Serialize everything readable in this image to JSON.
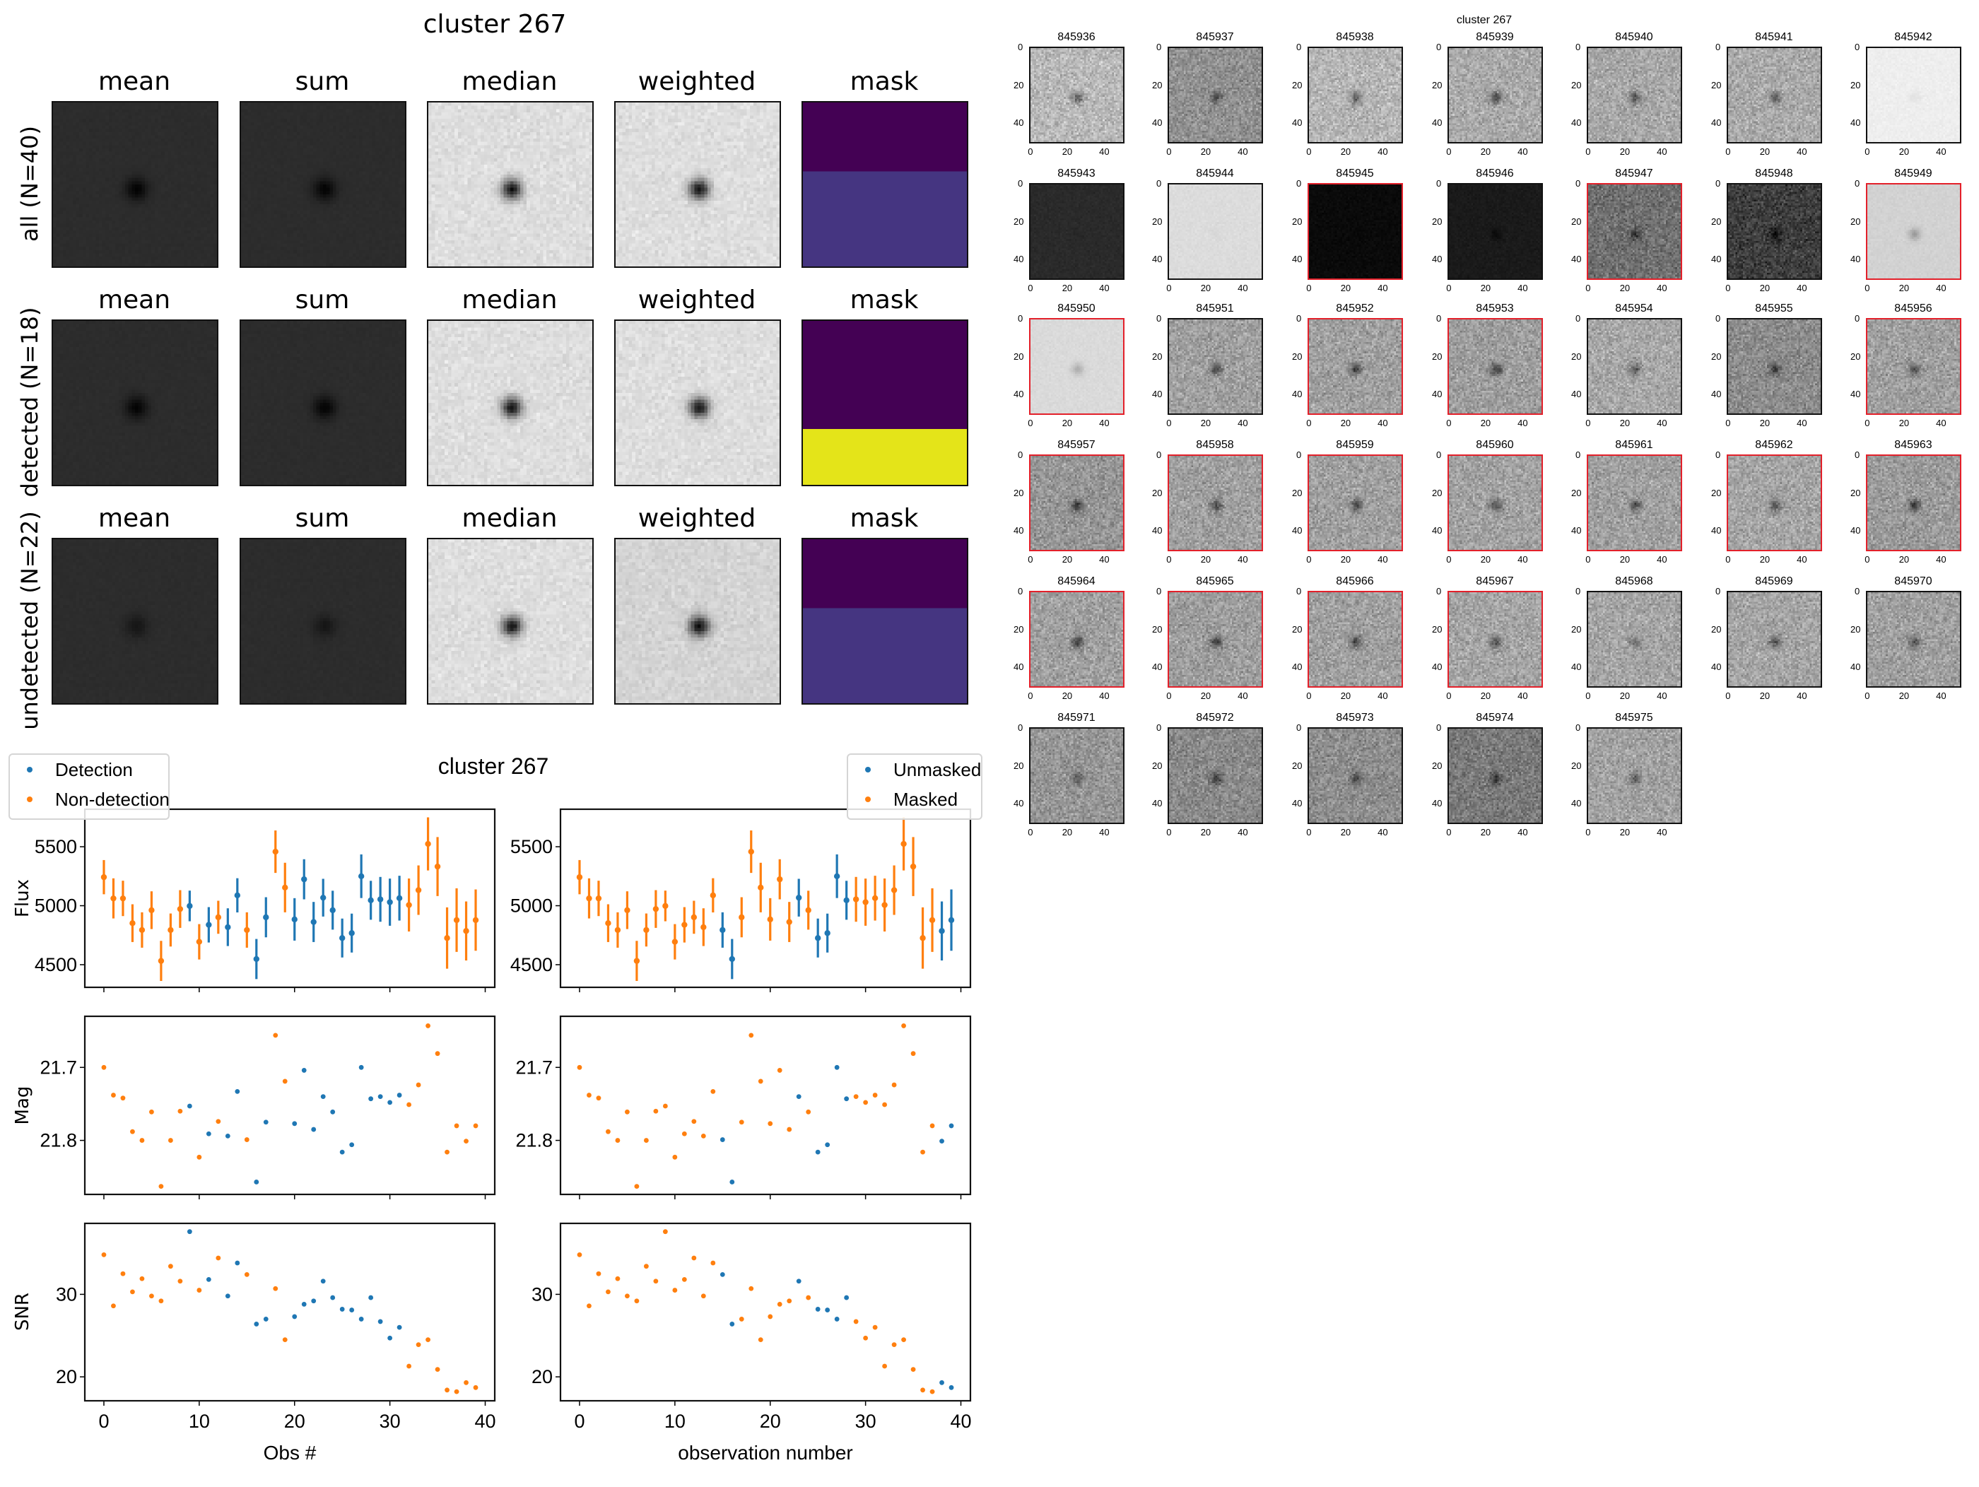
{
  "stack_figure": {
    "title": "cluster 267",
    "column_titles": [
      "mean",
      "sum",
      "median",
      "weighted",
      "mask"
    ],
    "rows": [
      {
        "label": "all (N=40)",
        "mask_colors": [
          "#440154",
          "#453581"
        ],
        "mask_split": 0.42
      },
      {
        "label": "detected (N=18)",
        "mask_colors": [
          "#440154",
          "#e4e419"
        ],
        "mask_split": 0.66
      },
      {
        "label": "undetected (N=22)",
        "mask_colors": [
          "#440154",
          "#453581"
        ],
        "mask_split": 0.42
      }
    ]
  },
  "lightcurve_figure": {
    "title": "cluster 267",
    "left_legend": [
      {
        "label": "Detection",
        "color": "#1f77b4"
      },
      {
        "label": "Non-detection",
        "color": "#ff7f0e"
      }
    ],
    "right_legend": [
      {
        "label": "Unmasked",
        "color": "#1f77b4"
      },
      {
        "label": "Masked",
        "color": "#ff7f0e"
      }
    ],
    "left_xlabel": "Obs #",
    "right_xlabel": "observation number",
    "ylabels": {
      "flux": "Flux",
      "mag": "Mag",
      "snr": "SNR"
    }
  },
  "observations": {
    "x": [
      0,
      1,
      2,
      3,
      4,
      5,
      6,
      7,
      8,
      9,
      10,
      11,
      12,
      13,
      14,
      15,
      16,
      17,
      18,
      19,
      20,
      21,
      22,
      23,
      24,
      25,
      26,
      27,
      28,
      29,
      30,
      31,
      32,
      33,
      34,
      35,
      36,
      37,
      38,
      39
    ],
    "flux": [
      5242,
      5062,
      5062,
      4852,
      4794,
      4962,
      4532,
      4794,
      4972,
      4998,
      4694,
      4838,
      4902,
      4818,
      5088,
      4794,
      4548,
      4902,
      5458,
      5154,
      4884,
      5224,
      4862,
      5068,
      4962,
      4726,
      4768,
      5250,
      5046,
      5054,
      5030,
      5064,
      5006,
      5132,
      5524,
      5332,
      4726,
      4878,
      4786,
      4878
    ],
    "flux_err": [
      145,
      170,
      150,
      160,
      150,
      160,
      170,
      140,
      160,
      130,
      150,
      150,
      140,
      160,
      145,
      150,
      170,
      170,
      180,
      210,
      180,
      170,
      170,
      160,
      165,
      165,
      165,
      185,
      165,
      190,
      200,
      190,
      225,
      210,
      225,
      250,
      260,
      270,
      250,
      260
    ],
    "mag": [
      21.7,
      21.738,
      21.742,
      21.788,
      21.8,
      21.761,
      21.863,
      21.8,
      21.76,
      21.753,
      21.823,
      21.791,
      21.774,
      21.794,
      21.733,
      21.799,
      21.857,
      21.775,
      21.656,
      21.719,
      21.777,
      21.704,
      21.785,
      21.74,
      21.761,
      21.816,
      21.806,
      21.7,
      21.743,
      21.74,
      21.748,
      21.738,
      21.751,
      21.724,
      21.643,
      21.681,
      21.816,
      21.78,
      21.801,
      21.78
    ],
    "snr": [
      34.8,
      28.6,
      32.5,
      30.3,
      31.9,
      29.8,
      29.2,
      33.4,
      31.6,
      37.6,
      30.5,
      31.8,
      34.4,
      29.8,
      33.8,
      32.4,
      26.4,
      27.0,
      30.7,
      24.5,
      27.3,
      28.8,
      29.2,
      31.6,
      29.6,
      28.2,
      28.1,
      27.0,
      29.6,
      26.7,
      24.7,
      26.0,
      21.3,
      23.9,
      24.5,
      20.9,
      18.4,
      18.2,
      19.3,
      18.7
    ],
    "detected": [
      0,
      0,
      0,
      0,
      0,
      0,
      0,
      0,
      0,
      1,
      0,
      1,
      0,
      1,
      1,
      0,
      1,
      1,
      0,
      0,
      1,
      1,
      1,
      1,
      1,
      1,
      1,
      1,
      1,
      1,
      1,
      1,
      0,
      0,
      0,
      0,
      0,
      0,
      0,
      0
    ],
    "masked": [
      1,
      1,
      1,
      1,
      1,
      1,
      1,
      1,
      1,
      1,
      1,
      1,
      1,
      1,
      1,
      0,
      0,
      1,
      1,
      1,
      1,
      1,
      1,
      0,
      1,
      0,
      0,
      0,
      0,
      1,
      1,
      1,
      1,
      1,
      1,
      1,
      1,
      1,
      0,
      0
    ]
  },
  "chart_data": [
    {
      "type": "scatter",
      "panel": "left-flux",
      "metric": "flux",
      "error": "flux_err",
      "group_by": "detected",
      "ylabel": "Flux",
      "xlabel": "",
      "xlim": [
        -2,
        41
      ],
      "ylim": [
        4308,
        5818
      ],
      "yticks": [
        4500,
        5000,
        5500
      ],
      "ytick_labels": [
        "4500",
        "5000",
        "5500"
      ],
      "series": [
        "Detection",
        "Non-detection"
      ]
    },
    {
      "type": "scatter",
      "panel": "left-mag",
      "metric": "mag",
      "group_by": "detected",
      "ylabel": "Mag",
      "xlabel": "",
      "xlim": [
        -2,
        41
      ],
      "ylim": [
        21.874,
        21.63
      ],
      "inverted_y": true,
      "yticks": [
        21.7,
        21.8
      ],
      "ytick_labels": [
        "21.7",
        "21.8"
      ],
      "series": [
        "Detection",
        "Non-detection"
      ]
    },
    {
      "type": "scatter",
      "panel": "left-snr",
      "metric": "snr",
      "group_by": "detected",
      "ylabel": "SNR",
      "xlabel": "Obs #",
      "xlim": [
        -2,
        41
      ],
      "ylim": [
        17.1,
        38.6
      ],
      "yticks": [
        20,
        30
      ],
      "ytick_labels": [
        "20",
        "30"
      ],
      "xticks": [
        0,
        10,
        20,
        30,
        40
      ],
      "xtick_labels": [
        "0",
        "10",
        "20",
        "30",
        "40"
      ],
      "series": [
        "Detection",
        "Non-detection"
      ]
    },
    {
      "type": "scatter",
      "panel": "right-flux",
      "metric": "flux",
      "error": "flux_err",
      "group_by": "unmasked",
      "xlim": [
        -2,
        41
      ],
      "ylim": [
        4308,
        5818
      ],
      "yticks": [
        4500,
        5000,
        5500
      ],
      "ytick_labels": [
        "4500",
        "5000",
        "5500"
      ],
      "series": [
        "Unmasked",
        "Masked"
      ]
    },
    {
      "type": "scatter",
      "panel": "right-mag",
      "metric": "mag",
      "group_by": "unmasked",
      "xlim": [
        -2,
        41
      ],
      "ylim": [
        21.874,
        21.63
      ],
      "inverted_y": true,
      "yticks": [
        21.7,
        21.8
      ],
      "ytick_labels": [
        "21.7",
        "21.8"
      ],
      "series": [
        "Unmasked",
        "Masked"
      ]
    },
    {
      "type": "scatter",
      "panel": "right-snr",
      "metric": "snr",
      "group_by": "unmasked",
      "xlabel": "observation number",
      "xlim": [
        -2,
        41
      ],
      "ylim": [
        17.1,
        38.6
      ],
      "yticks": [
        20,
        30
      ],
      "ytick_labels": [
        "20",
        "30"
      ],
      "xticks": [
        0,
        10,
        20,
        30,
        40
      ],
      "xtick_labels": [
        "0",
        "10",
        "20",
        "30",
        "40"
      ],
      "series": [
        "Unmasked",
        "Masked"
      ]
    }
  ],
  "thumbnails": {
    "title": "cluster 267",
    "tick_labels": [
      "0",
      "20",
      "40"
    ],
    "highlight_color": "#e3202a",
    "items": [
      {
        "id": "845936",
        "tone": 185,
        "spot": 90,
        "highlight": false
      },
      {
        "id": "845937",
        "tone": 145,
        "spot": 70,
        "highlight": false
      },
      {
        "id": "845938",
        "tone": 182,
        "spot": 90,
        "highlight": false
      },
      {
        "id": "845939",
        "tone": 170,
        "spot": 100,
        "highlight": false
      },
      {
        "id": "845940",
        "tone": 168,
        "spot": 80,
        "highlight": false
      },
      {
        "id": "845941",
        "tone": 170,
        "spot": 80,
        "highlight": false
      },
      {
        "id": "845942",
        "tone": 238,
        "spot": 12,
        "highlight": false
      },
      {
        "id": "845943",
        "tone": 42,
        "spot": 3,
        "highlight": false
      },
      {
        "id": "845944",
        "tone": 220,
        "spot": 6,
        "highlight": false
      },
      {
        "id": "845945",
        "tone": 10,
        "spot": 3,
        "highlight": true
      },
      {
        "id": "845946",
        "tone": 26,
        "spot": 14,
        "highlight": false
      },
      {
        "id": "845947",
        "tone": 112,
        "spot": 55,
        "highlight": true
      },
      {
        "id": "845948",
        "tone": 62,
        "spot": 50,
        "highlight": false
      },
      {
        "id": "845949",
        "tone": 210,
        "spot": 55,
        "highlight": true
      },
      {
        "id": "845950",
        "tone": 218,
        "spot": 45,
        "highlight": true
      },
      {
        "id": "845951",
        "tone": 160,
        "spot": 90,
        "highlight": false
      },
      {
        "id": "845952",
        "tone": 160,
        "spot": 90,
        "highlight": true
      },
      {
        "id": "845953",
        "tone": 158,
        "spot": 100,
        "highlight": true
      },
      {
        "id": "845954",
        "tone": 168,
        "spot": 80,
        "highlight": false
      },
      {
        "id": "845955",
        "tone": 140,
        "spot": 80,
        "highlight": false
      },
      {
        "id": "845956",
        "tone": 160,
        "spot": 80,
        "highlight": true
      },
      {
        "id": "845957",
        "tone": 150,
        "spot": 95,
        "highlight": true
      },
      {
        "id": "845958",
        "tone": 160,
        "spot": 90,
        "highlight": true
      },
      {
        "id": "845959",
        "tone": 160,
        "spot": 90,
        "highlight": true
      },
      {
        "id": "845960",
        "tone": 162,
        "spot": 85,
        "highlight": true
      },
      {
        "id": "845961",
        "tone": 160,
        "spot": 85,
        "highlight": true
      },
      {
        "id": "845962",
        "tone": 165,
        "spot": 80,
        "highlight": true
      },
      {
        "id": "845963",
        "tone": 155,
        "spot": 95,
        "highlight": true
      },
      {
        "id": "845964",
        "tone": 160,
        "spot": 100,
        "highlight": true
      },
      {
        "id": "845965",
        "tone": 158,
        "spot": 95,
        "highlight": true
      },
      {
        "id": "845966",
        "tone": 160,
        "spot": 95,
        "highlight": true
      },
      {
        "id": "845967",
        "tone": 165,
        "spot": 85,
        "highlight": true
      },
      {
        "id": "845968",
        "tone": 165,
        "spot": 55,
        "highlight": false
      },
      {
        "id": "845969",
        "tone": 165,
        "spot": 75,
        "highlight": false
      },
      {
        "id": "845970",
        "tone": 160,
        "spot": 75,
        "highlight": false
      },
      {
        "id": "845971",
        "tone": 150,
        "spot": 65,
        "highlight": false
      },
      {
        "id": "845972",
        "tone": 138,
        "spot": 75,
        "highlight": false
      },
      {
        "id": "845973",
        "tone": 142,
        "spot": 70,
        "highlight": false
      },
      {
        "id": "845974",
        "tone": 122,
        "spot": 70,
        "highlight": false
      },
      {
        "id": "845975",
        "tone": 162,
        "spot": 70,
        "highlight": false
      }
    ]
  }
}
